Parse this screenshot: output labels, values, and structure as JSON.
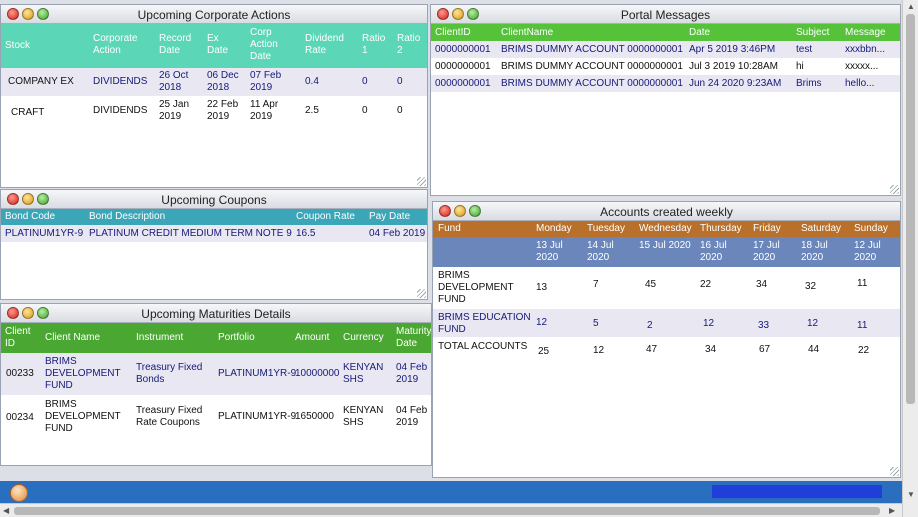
{
  "corp_actions": {
    "title": "Upcoming Corporate Actions",
    "columns": [
      "Stock",
      "Corporate\nAction",
      "Record\nDate",
      "Ex\nDate",
      "Corp\nAction\nDate",
      "Dividend\nRate",
      "Ratio\n1",
      "Ratio\n2"
    ],
    "rows": [
      [
        "COMPANY EX",
        "DIVIDENDS",
        "26 Oct\n2018",
        "06 Dec\n2018",
        "07 Feb\n2019",
        "0.4",
        "0",
        "0"
      ],
      [
        "CRAFT",
        "DIVIDENDS",
        "25 Jan\n2019",
        "22 Feb\n2019",
        "11 Apr\n2019",
        "2.5",
        "0",
        "0"
      ]
    ]
  },
  "coupons": {
    "title": "Upcoming Coupons",
    "columns": [
      "Bond Code",
      "Bond Description",
      "Coupon Rate",
      "Pay Date"
    ],
    "rows": [
      [
        "PLATINUM1YR-9",
        "PLATINUM CREDIT MEDIUM TERM NOTE 9",
        "16.5",
        "04 Feb 2019"
      ]
    ]
  },
  "maturities": {
    "title": "Upcoming Maturities Details",
    "columns": [
      "Client\nID",
      "Client Name",
      "Instrument",
      "Portfolio",
      "Amount",
      "Currency",
      "Maturity\nDate"
    ],
    "rows": [
      [
        "00233",
        "BRIMS\nDEVELOPMENT\nFUND",
        "Treasury Fixed\nBonds",
        "PLATINUM1YR-9",
        "10000000",
        "KENYAN\nSHS",
        "04 Feb\n2019"
      ],
      [
        "00234",
        "BRIMS\nDEVELOPMENT\nFUND",
        "Treasury Fixed\nRate Coupons",
        "PLATINUM1YR-9",
        "1650000",
        "KENYAN\nSHS",
        "04 Feb\n2019"
      ]
    ]
  },
  "portal": {
    "title": "Portal Messages",
    "columns": [
      "ClientID",
      "ClientName",
      "Date",
      "Subject",
      "Message"
    ],
    "rows": [
      [
        "0000000001",
        "BRIMS DUMMY ACCOUNT 0000000001",
        "Apr 5 2019 3:46PM",
        "test",
        "xxxbbn..."
      ],
      [
        "0000000001",
        "BRIMS DUMMY ACCOUNT 0000000001",
        "Jul 3 2019 10:28AM",
        "hi",
        "xxxxx..."
      ],
      [
        "0000000001",
        "BRIMS DUMMY ACCOUNT 0000000001",
        "Jun 24 2020 9:23AM",
        "Brims",
        "hello..."
      ]
    ]
  },
  "weekly": {
    "title": "Accounts created weekly",
    "columns": [
      "Fund",
      "Monday",
      "Tuesday",
      "Wednesday",
      "Thursday",
      "Friday",
      "Saturday",
      "Sunday"
    ],
    "dates": [
      "",
      "13 Jul\n2020",
      "14 Jul\n2020",
      "15 Jul 2020",
      "16 Jul\n2020",
      "17 Jul\n2020",
      "18 Jul\n2020",
      "12 Jul\n2020"
    ],
    "rows": [
      [
        "BRIMS\nDEVELOPMENT\nFUND",
        "13",
        "7",
        "45",
        "22",
        "34",
        "32",
        "11"
      ],
      [
        "BRIMS EDUCATION\nFUND",
        "12",
        "5",
        "2",
        "12",
        "33",
        "12",
        "11"
      ],
      [
        "TOTAL ACCOUNTS",
        "25",
        "12",
        "47",
        "34",
        "67",
        "44",
        "22"
      ]
    ]
  },
  "colors": {
    "corp_header": "#5bd6b6",
    "coupons_header": "#3aa6b8",
    "maturities_header": "#4aa832",
    "portal_header": "#55c23a",
    "weekly_header": "#b8702a",
    "weekly_dates": "#6a86bb",
    "taskbar": "#2a6fbf"
  },
  "icons": {
    "window_buttons": [
      "close-icon",
      "minimize-icon",
      "maximize-icon"
    ],
    "taskbar": "start-orb-icon"
  }
}
